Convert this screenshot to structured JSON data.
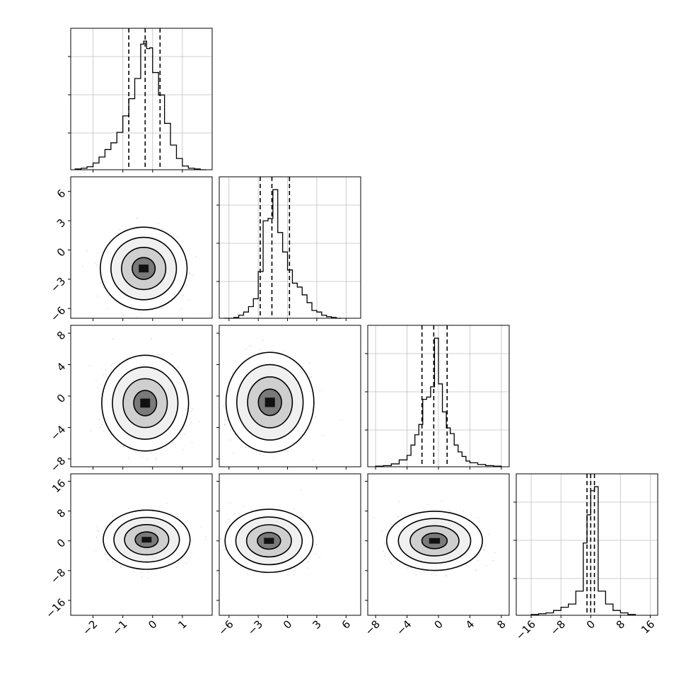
{
  "chart_data": {
    "type": "corner",
    "parameters": [
      "",
      "",
      "",
      ""
    ],
    "grid": true,
    "quantile_lines": "dashed",
    "axes": {
      "p1": {
        "range": [
          -2.75,
          2.0
        ],
        "ticks": [
          -2,
          -1,
          0,
          1
        ],
        "tick_labels": [
          "−2",
          "−1",
          "0",
          "1"
        ]
      },
      "p2": {
        "range": [
          -7.0,
          7.5
        ],
        "ticks": [
          -6,
          -3,
          0,
          3,
          6
        ],
        "tick_labels": [
          "−6",
          "−3",
          "0",
          "3",
          "6"
        ]
      },
      "p3": {
        "range": [
          -9.0,
          9.0
        ],
        "ticks": [
          -8,
          -4,
          0,
          4,
          8
        ],
        "tick_labels": [
          "−8",
          "−4",
          "0",
          "4",
          "8"
        ]
      },
      "p4": {
        "range": [
          -20.0,
          18.0
        ],
        "ticks": [
          -16,
          -8,
          0,
          8,
          16
        ],
        "tick_labels": [
          "−16",
          "−8",
          "0",
          "8",
          "16"
        ]
      }
    },
    "histograms": [
      {
        "param": "p1",
        "bin_edges": [
          -2.6,
          -2.4,
          -2.2,
          -2.0,
          -1.8,
          -1.6,
          -1.4,
          -1.2,
          -1.0,
          -0.8,
          -0.6,
          -0.4,
          -0.3,
          -0.2,
          -0.1,
          0.0,
          0.2,
          0.4,
          0.6,
          0.8,
          1.0,
          1.2,
          1.4,
          1.6,
          1.8
        ],
        "counts": [
          1,
          2,
          4,
          9,
          17,
          27,
          36,
          50,
          72,
          95,
          122,
          168,
          172,
          162,
          163,
          130,
          100,
          62,
          33,
          15,
          5,
          2,
          1,
          0
        ],
        "quantiles": [
          -0.8,
          -0.25,
          0.25
        ]
      },
      {
        "param": "p2",
        "bin_edges": [
          -6.5,
          -6.0,
          -5.5,
          -5.0,
          -4.5,
          -4.0,
          -3.5,
          -3.0,
          -2.5,
          -2.0,
          -1.5,
          -1.0,
          -0.5,
          0.0,
          0.5,
          1.0,
          1.5,
          2.0,
          2.5,
          3.0,
          3.5,
          4.0,
          4.5,
          5.0,
          5.5
        ],
        "counts": [
          0,
          0,
          1,
          4,
          8,
          15,
          25,
          60,
          125,
          128,
          165,
          110,
          85,
          62,
          45,
          40,
          30,
          20,
          10,
          8,
          4,
          2,
          1,
          0
        ],
        "quantiles": [
          -2.8,
          -1.6,
          0.2
        ]
      },
      {
        "param": "p3",
        "bin_edges": [
          -8.0,
          -7.0,
          -6.0,
          -5.0,
          -4.0,
          -3.5,
          -3.0,
          -2.5,
          -2.0,
          -1.5,
          -1.0,
          -0.5,
          0.0,
          0.5,
          1.0,
          1.5,
          2.0,
          2.5,
          3.0,
          3.5,
          4.0,
          5.0,
          6.0,
          7.0,
          8.0
        ],
        "counts": [
          1,
          2,
          5,
          12,
          20,
          38,
          56,
          74,
          118,
          122,
          140,
          225,
          145,
          96,
          68,
          58,
          38,
          26,
          18,
          10,
          7,
          4,
          2,
          1
        ],
        "quantiles": [
          -2.1,
          -0.6,
          1.1
        ]
      },
      {
        "param": "p4",
        "bin_edges": [
          -16.0,
          -14.0,
          -12.0,
          -10.0,
          -8.0,
          -6.0,
          -4.0,
          -2.0,
          -1.0,
          0.0,
          1.0,
          2.0,
          4.0,
          6.0,
          8.0,
          10.0,
          12.0
        ],
        "counts": [
          1,
          2,
          3,
          6,
          10,
          14,
          30,
          90,
          125,
          155,
          160,
          30,
          14,
          6,
          3,
          1
        ],
        "quantiles": [
          -1.0,
          0.0,
          1.0
        ]
      }
    ],
    "scatter_2d": [
      {
        "x": "p1",
        "y": "p2",
        "mean": [
          -0.3,
          -1.9
        ],
        "std": [
          0.55,
          1.6
        ],
        "contour_level_scales": [
          0.7,
          1.35,
          2.0,
          2.65
        ]
      },
      {
        "x": "p1",
        "y": "p3",
        "mean": [
          -0.25,
          -0.9
        ],
        "std": [
          0.55,
          2.3
        ],
        "contour_level_scales": [
          0.7,
          1.35,
          2.0,
          2.65
        ]
      },
      {
        "x": "p2",
        "y": "p3",
        "mean": [
          -1.8,
          -0.8
        ],
        "std": [
          1.7,
          2.4
        ],
        "contour_level_scales": [
          0.7,
          1.35,
          2.0,
          2.65
        ]
      },
      {
        "x": "p1",
        "y": "p4",
        "mean": [
          -0.2,
          0.3
        ],
        "std": [
          0.55,
          3.0
        ],
        "contour_level_scales": [
          0.7,
          1.35,
          2.0,
          2.65
        ]
      },
      {
        "x": "p2",
        "y": "p4",
        "mean": [
          -1.9,
          0.0
        ],
        "std": [
          1.7,
          3.2
        ],
        "contour_level_scales": [
          0.7,
          1.35,
          2.0,
          2.65
        ]
      },
      {
        "x": "p3",
        "y": "p4",
        "mean": [
          -0.5,
          0.0
        ],
        "std": [
          2.3,
          3.0
        ],
        "contour_level_scales": [
          0.7,
          1.35,
          2.0,
          2.65
        ]
      }
    ]
  }
}
